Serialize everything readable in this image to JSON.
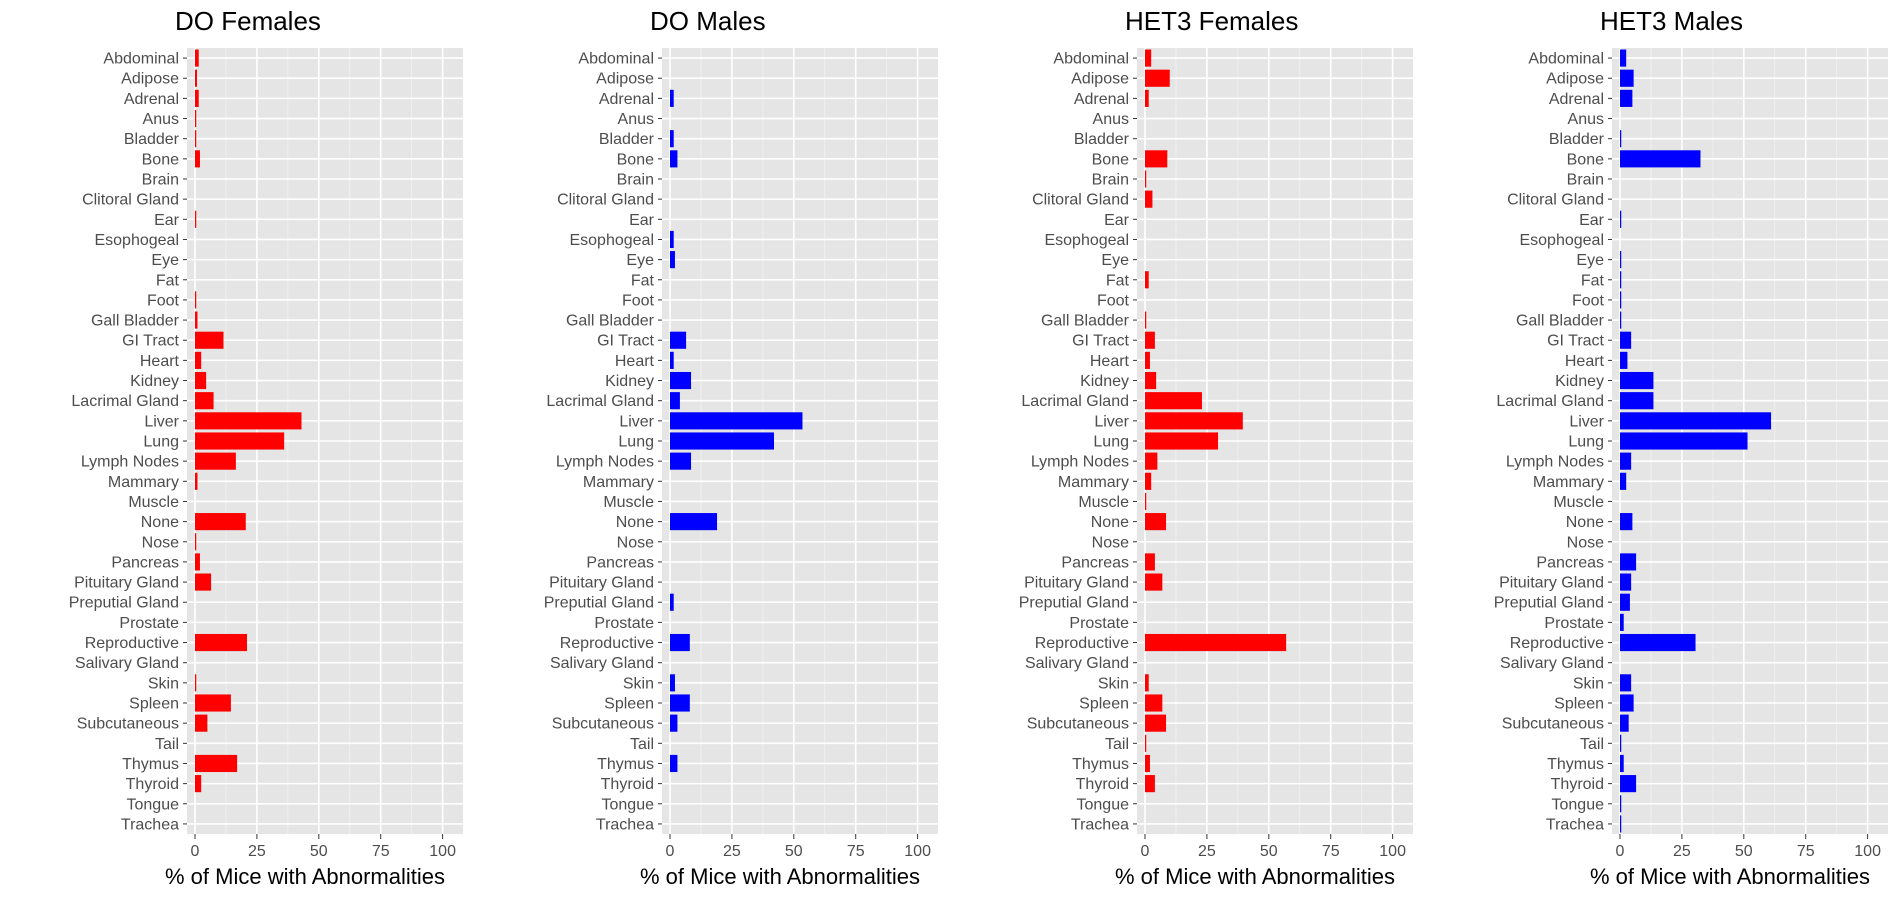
{
  "chart_data": {
    "type": "bar",
    "orientation": "horizontal",
    "categories": [
      "Abdominal",
      "Adipose",
      "Adrenal",
      "Anus",
      "Bladder",
      "Bone",
      "Brain",
      "Clitoral Gland",
      "Ear",
      "Esophogeal",
      "Eye",
      "Fat",
      "Foot",
      "Gall Bladder",
      "GI Tract",
      "Heart",
      "Kidney",
      "Lacrimal Gland",
      "Liver",
      "Lung",
      "Lymph Nodes",
      "Mammary",
      "Muscle",
      "None",
      "Nose",
      "Pancreas",
      "Pituitary Gland",
      "Preputial Gland",
      "Prostate",
      "Reproductive",
      "Salivary Gland",
      "Skin",
      "Spleen",
      "Subcutaneous",
      "Tail",
      "Thymus",
      "Thyroid",
      "Tongue",
      "Trachea"
    ],
    "xlabel": "% of Mice with Abnormalities",
    "xlim": [
      0,
      105
    ],
    "xticks": [
      0,
      25,
      50,
      75,
      100
    ],
    "grid": true,
    "panels": [
      {
        "title": "DO Females",
        "color": "#ff0000",
        "values": [
          1.5,
          0.8,
          1.5,
          0.5,
          0.5,
          2,
          0,
          0,
          0.5,
          0,
          0,
          0,
          0.5,
          1,
          11.5,
          2.5,
          4.5,
          7.5,
          43,
          36,
          16.5,
          1,
          0,
          20.5,
          0.5,
          2,
          6.5,
          0,
          0,
          21,
          0,
          0.5,
          14.5,
          5,
          0,
          17,
          2.5,
          0,
          0
        ]
      },
      {
        "title": "DO Males",
        "color": "#0000ff",
        "values": [
          0,
          0,
          1.5,
          0,
          1.5,
          3,
          0,
          0,
          0,
          1.5,
          2,
          0,
          0,
          0,
          6.5,
          1.5,
          8.5,
          4,
          53.5,
          42,
          8.5,
          0,
          0,
          19,
          0,
          0,
          0,
          1.5,
          0,
          8,
          0,
          2,
          8,
          3,
          0,
          3,
          0,
          0,
          0
        ]
      },
      {
        "title": "HET3 Females",
        "color": "#ff0000",
        "values": [
          2.5,
          10,
          1.5,
          0,
          0,
          9,
          0.5,
          3,
          0,
          0,
          0,
          1.5,
          0,
          0.5,
          4,
          2,
          4.5,
          23,
          39.5,
          29.5,
          5,
          2.5,
          0.5,
          8.5,
          0,
          4,
          7,
          0,
          0,
          57,
          0,
          1.5,
          7,
          8.5,
          0.5,
          2,
          4,
          0,
          0
        ]
      },
      {
        "title": "HET3 Males",
        "color": "#0000ff",
        "values": [
          2.5,
          5.5,
          5,
          0,
          0.5,
          32.5,
          0,
          0,
          0.5,
          0,
          0.5,
          0.5,
          0.5,
          0.5,
          4.5,
          3,
          13.5,
          13.5,
          61,
          51.5,
          4.5,
          2.5,
          0,
          5,
          0,
          6.5,
          4.5,
          4,
          1.5,
          30.5,
          0,
          4.5,
          5.5,
          3.5,
          0.5,
          1.5,
          6.5,
          0.5,
          0.5
        ]
      }
    ]
  }
}
